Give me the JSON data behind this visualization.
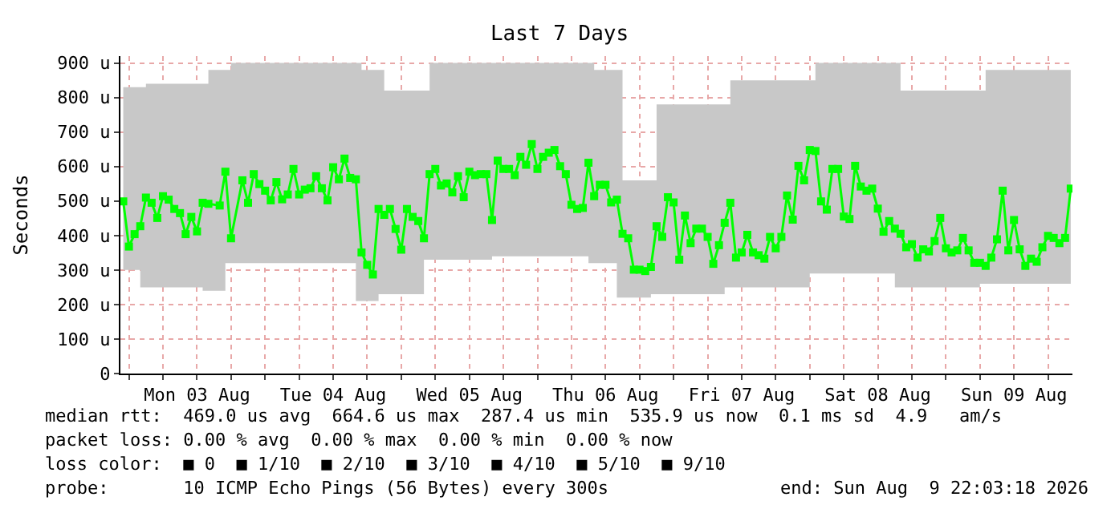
{
  "chart_data": {
    "type": "line",
    "title": "Last 7 Days",
    "ylabel": "Seconds",
    "x": [
      "2026-08-02T23:00",
      "2026-08-03T00:00",
      "2026-08-03T01:00",
      "2026-08-03T02:00",
      "2026-08-03T03:00",
      "2026-08-03T04:00",
      "2026-08-03T05:00",
      "2026-08-03T06:00",
      "2026-08-03T07:00",
      "2026-08-03T08:00",
      "2026-08-03T09:00",
      "2026-08-03T10:00",
      "2026-08-03T11:00",
      "2026-08-03T12:00",
      "2026-08-03T13:00",
      "2026-08-03T14:00",
      "2026-08-03T16:00",
      "2026-08-03T17:00",
      "2026-08-03T18:00",
      "2026-08-03T20:00",
      "2026-08-03T21:00",
      "2026-08-03T22:00",
      "2026-08-03T23:00",
      "2026-08-04T00:00",
      "2026-08-04T01:00",
      "2026-08-04T02:00",
      "2026-08-04T03:00",
      "2026-08-04T04:00",
      "2026-08-04T05:00",
      "2026-08-04T06:00",
      "2026-08-04T07:00",
      "2026-08-04T08:00",
      "2026-08-04T09:00",
      "2026-08-04T10:00",
      "2026-08-04T11:00",
      "2026-08-04T12:00",
      "2026-08-04T13:00",
      "2026-08-04T14:00",
      "2026-08-04T15:00",
      "2026-08-04T16:00",
      "2026-08-04T17:00",
      "2026-08-04T18:00",
      "2026-08-04T19:00",
      "2026-08-04T20:00",
      "2026-08-04T21:00",
      "2026-08-04T22:00",
      "2026-08-04T23:00",
      "2026-08-05T00:00",
      "2026-08-05T01:00",
      "2026-08-05T02:00",
      "2026-08-05T03:00",
      "2026-08-05T04:00",
      "2026-08-05T05:00",
      "2026-08-05T06:00",
      "2026-08-05T07:00",
      "2026-08-05T08:00",
      "2026-08-05T09:00",
      "2026-08-05T10:00",
      "2026-08-05T11:00",
      "2026-08-05T12:00",
      "2026-08-05T13:00",
      "2026-08-05T14:00",
      "2026-08-05T15:00",
      "2026-08-05T16:00",
      "2026-08-05T17:00",
      "2026-08-05T18:00",
      "2026-08-05T19:00",
      "2026-08-05T20:00",
      "2026-08-05T21:00",
      "2026-08-05T22:00",
      "2026-08-05T23:00",
      "2026-08-06T00:00",
      "2026-08-06T01:00",
      "2026-08-06T02:00",
      "2026-08-06T03:00",
      "2026-08-06T04:00",
      "2026-08-06T05:00",
      "2026-08-06T06:00",
      "2026-08-06T07:00",
      "2026-08-06T08:00",
      "2026-08-06T09:00",
      "2026-08-06T10:00",
      "2026-08-06T11:00",
      "2026-08-06T12:00",
      "2026-08-06T13:00",
      "2026-08-06T14:00",
      "2026-08-06T15:00",
      "2026-08-06T16:00",
      "2026-08-06T17:00",
      "2026-08-06T18:00",
      "2026-08-06T19:00",
      "2026-08-06T20:00",
      "2026-08-06T21:00",
      "2026-08-06T22:00",
      "2026-08-06T23:00",
      "2026-08-07T00:00",
      "2026-08-07T01:00",
      "2026-08-07T02:00",
      "2026-08-07T03:00",
      "2026-08-07T04:00",
      "2026-08-07T05:00",
      "2026-08-07T06:00",
      "2026-08-07T07:00",
      "2026-08-07T08:00",
      "2026-08-07T09:00",
      "2026-08-07T10:00",
      "2026-08-07T11:00",
      "2026-08-07T12:00",
      "2026-08-07T13:00",
      "2026-08-07T14:00",
      "2026-08-07T15:00",
      "2026-08-07T16:00",
      "2026-08-07T17:00",
      "2026-08-07T18:00",
      "2026-08-07T19:00",
      "2026-08-07T20:00",
      "2026-08-07T21:00",
      "2026-08-07T22:00",
      "2026-08-07T23:00",
      "2026-08-08T00:00",
      "2026-08-08T01:00",
      "2026-08-08T02:00",
      "2026-08-08T03:00",
      "2026-08-08T04:00",
      "2026-08-08T05:00",
      "2026-08-08T06:00",
      "2026-08-08T07:00",
      "2026-08-08T08:00",
      "2026-08-08T09:00",
      "2026-08-08T10:00",
      "2026-08-08T11:00",
      "2026-08-08T12:00",
      "2026-08-08T13:00",
      "2026-08-08T14:00",
      "2026-08-08T15:00",
      "2026-08-08T16:00",
      "2026-08-08T17:00",
      "2026-08-08T18:00",
      "2026-08-08T19:00",
      "2026-08-08T20:00",
      "2026-08-08T21:00",
      "2026-08-08T22:00",
      "2026-08-08T23:00",
      "2026-08-09T00:00",
      "2026-08-09T01:00",
      "2026-08-09T02:00",
      "2026-08-09T03:00",
      "2026-08-09T04:00",
      "2026-08-09T05:00",
      "2026-08-09T06:00",
      "2026-08-09T07:00",
      "2026-08-09T08:00",
      "2026-08-09T09:00",
      "2026-08-09T10:00",
      "2026-08-09T11:00",
      "2026-08-09T12:00",
      "2026-08-09T13:00",
      "2026-08-09T14:00",
      "2026-08-09T15:00",
      "2026-08-09T16:00",
      "2026-08-09T17:00",
      "2026-08-09T18:00",
      "2026-08-09T19:00",
      "2026-08-09T20:00",
      "2026-08-09T21:00",
      "2026-08-09T22:00"
    ],
    "series": [
      {
        "color": "#00ff00",
        "values": [
          499,
          368,
          404,
          427,
          510,
          495,
          451,
          514,
          504,
          477,
          465,
          404,
          454,
          412,
          495,
          492,
          487,
          585,
          392,
          560,
          495,
          578,
          549,
          530,
          502,
          555,
          505,
          519,
          593,
          519,
          533,
          537,
          572,
          537,
          502,
          598,
          563,
          623,
          567,
          563,
          351,
          315,
          287,
          477,
          460,
          477,
          419,
          359,
          477,
          454,
          442,
          392,
          578,
          593,
          545,
          551,
          525,
          572,
          511,
          585,
          575,
          578,
          578,
          445,
          617,
          593,
          593,
          575,
          628,
          605,
          665,
          593,
          628,
          640,
          648,
          601,
          578,
          489,
          477,
          480,
          611,
          514,
          547,
          547,
          496,
          504,
          405,
          392,
          301,
          301,
          297,
          309,
          427,
          396,
          511,
          496,
          330,
          458,
          378,
          420,
          420,
          396,
          318,
          372,
          437,
          495,
          336,
          351,
          402,
          351,
          343,
          333,
          396,
          363,
          396,
          516,
          446,
          602,
          560,
          648,
          645,
          499,
          475,
          593,
          593,
          455,
          448,
          602,
          542,
          530,
          536,
          478,
          411,
          442,
          420,
          405,
          366,
          375,
          336,
          360,
          354,
          384,
          451,
          363,
          351,
          357,
          393,
          357,
          321,
          321,
          312,
          336,
          389,
          530,
          357,
          445,
          360,
          312,
          333,
          324,
          366,
          399,
          393,
          378,
          393,
          536
        ],
        "upper": [
          830,
          830,
          830,
          830,
          840,
          840,
          840,
          840,
          840,
          840,
          840,
          840,
          840,
          840,
          840,
          880,
          880,
          880,
          900,
          900,
          900,
          900,
          900,
          900,
          900,
          900,
          900,
          900,
          900,
          900,
          900,
          900,
          900,
          900,
          900,
          900,
          900,
          900,
          900,
          900,
          880,
          880,
          880,
          880,
          820,
          820,
          820,
          820,
          820,
          820,
          820,
          820,
          900,
          900,
          900,
          900,
          900,
          900,
          900,
          900,
          900,
          900,
          900,
          900,
          900,
          900,
          900,
          900,
          900,
          900,
          900,
          900,
          900,
          900,
          900,
          900,
          900,
          900,
          900,
          900,
          900,
          880,
          880,
          880,
          880,
          880,
          560,
          560,
          560,
          560,
          560,
          560,
          780,
          780,
          780,
          780,
          780,
          780,
          780,
          780,
          780,
          780,
          780,
          780,
          780,
          850,
          850,
          850,
          850,
          850,
          850,
          850,
          850,
          850,
          850,
          850,
          850,
          850,
          850,
          850,
          900,
          900,
          900,
          900,
          900,
          900,
          900,
          900,
          900,
          900,
          900,
          900,
          900,
          900,
          900,
          820,
          820,
          820,
          820,
          820,
          820,
          820,
          820,
          820,
          820,
          820,
          820,
          820,
          820,
          820,
          880,
          880,
          880,
          880,
          880,
          880,
          880,
          880,
          880,
          880,
          880,
          880,
          880,
          880,
          880,
          880
        ],
        "lower": [
          300,
          300,
          300,
          300,
          250,
          250,
          250,
          250,
          250,
          250,
          250,
          250,
          250,
          250,
          250,
          240,
          240,
          240,
          320,
          320,
          320,
          320,
          320,
          320,
          320,
          320,
          320,
          320,
          320,
          320,
          320,
          320,
          320,
          320,
          320,
          320,
          320,
          320,
          320,
          320,
          210,
          210,
          210,
          210,
          230,
          230,
          230,
          230,
          230,
          230,
          230,
          230,
          330,
          330,
          330,
          330,
          330,
          330,
          330,
          330,
          330,
          330,
          330,
          330,
          340,
          340,
          340,
          340,
          340,
          340,
          340,
          340,
          340,
          340,
          340,
          340,
          340,
          340,
          340,
          340,
          340,
          320,
          320,
          320,
          320,
          320,
          220,
          220,
          220,
          220,
          220,
          220,
          230,
          230,
          230,
          230,
          230,
          230,
          230,
          230,
          230,
          230,
          230,
          230,
          230,
          250,
          250,
          250,
          250,
          250,
          250,
          250,
          250,
          250,
          250,
          250,
          250,
          250,
          250,
          250,
          290,
          290,
          290,
          290,
          290,
          290,
          290,
          290,
          290,
          290,
          290,
          290,
          290,
          290,
          290,
          250,
          250,
          250,
          250,
          250,
          250,
          250,
          250,
          250,
          250,
          250,
          250,
          250,
          250,
          250,
          260,
          260,
          260,
          260,
          260,
          260,
          260,
          260,
          260,
          260,
          260,
          260,
          260,
          260,
          260,
          260
        ]
      }
    ],
    "xlim": [
      "2026-08-02T22:30",
      "2026-08-09T22:18"
    ],
    "xticks": [
      {
        "value": "2026-08-03T00:00",
        "label": null
      },
      {
        "value": "2026-08-03T06:00",
        "label": null
      },
      {
        "value": "2026-08-03T12:00",
        "label": "Mon 03 Aug"
      },
      {
        "value": "2026-08-03T18:00",
        "label": null
      },
      {
        "value": "2026-08-04T00:00",
        "label": null
      },
      {
        "value": "2026-08-04T06:00",
        "label": null
      },
      {
        "value": "2026-08-04T12:00",
        "label": "Tue 04 Aug"
      },
      {
        "value": "2026-08-04T18:00",
        "label": null
      },
      {
        "value": "2026-08-05T00:00",
        "label": null
      },
      {
        "value": "2026-08-05T06:00",
        "label": null
      },
      {
        "value": "2026-08-05T12:00",
        "label": "Wed 05 Aug"
      },
      {
        "value": "2026-08-05T18:00",
        "label": null
      },
      {
        "value": "2026-08-06T00:00",
        "label": null
      },
      {
        "value": "2026-08-06T06:00",
        "label": null
      },
      {
        "value": "2026-08-06T12:00",
        "label": "Thu 06 Aug"
      },
      {
        "value": "2026-08-06T18:00",
        "label": null
      },
      {
        "value": "2026-08-07T00:00",
        "label": null
      },
      {
        "value": "2026-08-07T06:00",
        "label": null
      },
      {
        "value": "2026-08-07T12:00",
        "label": "Fri 07 Aug"
      },
      {
        "value": "2026-08-07T18:00",
        "label": null
      },
      {
        "value": "2026-08-08T00:00",
        "label": null
      },
      {
        "value": "2026-08-08T06:00",
        "label": null
      },
      {
        "value": "2026-08-08T12:00",
        "label": "Sat 08 Aug"
      },
      {
        "value": "2026-08-08T18:00",
        "label": null
      },
      {
        "value": "2026-08-09T00:00",
        "label": null
      },
      {
        "value": "2026-08-09T06:00",
        "label": null
      },
      {
        "value": "2026-08-09T12:00",
        "label": "Sun 09 Aug"
      },
      {
        "value": "2026-08-09T18:00",
        "label": null
      }
    ],
    "ylim": [
      0,
      920
    ],
    "yticks": [
      0,
      {
        "value": 100,
        "label": "100 u"
      },
      {
        "value": 200,
        "label": "200 u"
      },
      {
        "value": 300,
        "label": "300 u"
      },
      {
        "value": 400,
        "label": "400 u"
      },
      {
        "value": 500,
        "label": "500 u"
      },
      {
        "value": 600,
        "label": "600 u"
      },
      {
        "value": 700,
        "label": "700 u"
      },
      {
        "value": 800,
        "label": "800 u"
      },
      {
        "value": 900,
        "label": "900 u"
      }
    ],
    "grid": true,
    "marker": "square",
    "line_style": "solid",
    "annotations": [
      "median rtt:  469.0 us avg  664.6 us max  287.4 us min  535.9 us now  0.1 ms sd  4.9   am/s",
      "packet loss: 0.00 % avg  0.00 % max  0.00 % min  0.00 % now",
      "loss color:  ■ 0  ■ 1/10  ■ 2/10  ■ 3/10  ■ 4/10  ■ 5/10  ■ 9/10",
      "probe:       10 ICMP Echo Pings (56 Bytes) every 300s",
      "end: Sun Aug  9 22:03:18 2026"
    ]
  }
}
